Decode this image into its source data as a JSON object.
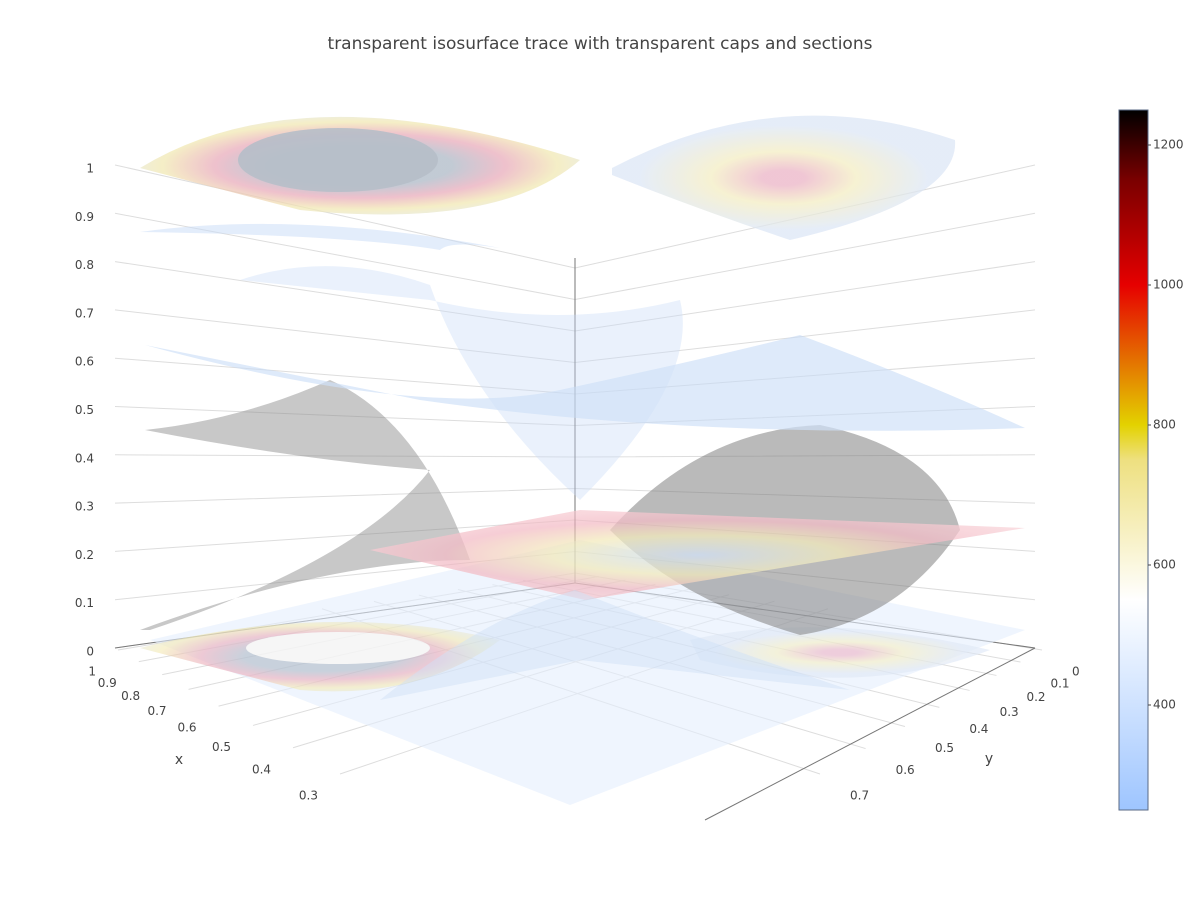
{
  "chart_data": {
    "type": "isosurface",
    "title": "transparent isosurface trace with transparent caps and sections",
    "xlabel": "x",
    "ylabel": "y",
    "xticks": [
      1,
      0.9,
      0.8,
      0.7,
      0.6,
      0.5,
      0.4,
      0.3
    ],
    "yticks": [
      0,
      0.1,
      0.2,
      0.3,
      0.4,
      0.5,
      0.6,
      0.7
    ],
    "zticks": [
      0,
      0.1,
      0.2,
      0.3,
      0.4,
      0.5,
      0.6,
      0.7,
      0.8,
      0.9,
      1
    ],
    "colorbar": {
      "range": [
        250,
        1250
      ],
      "ticks": [
        400,
        600,
        800,
        1000,
        1200
      ]
    }
  }
}
